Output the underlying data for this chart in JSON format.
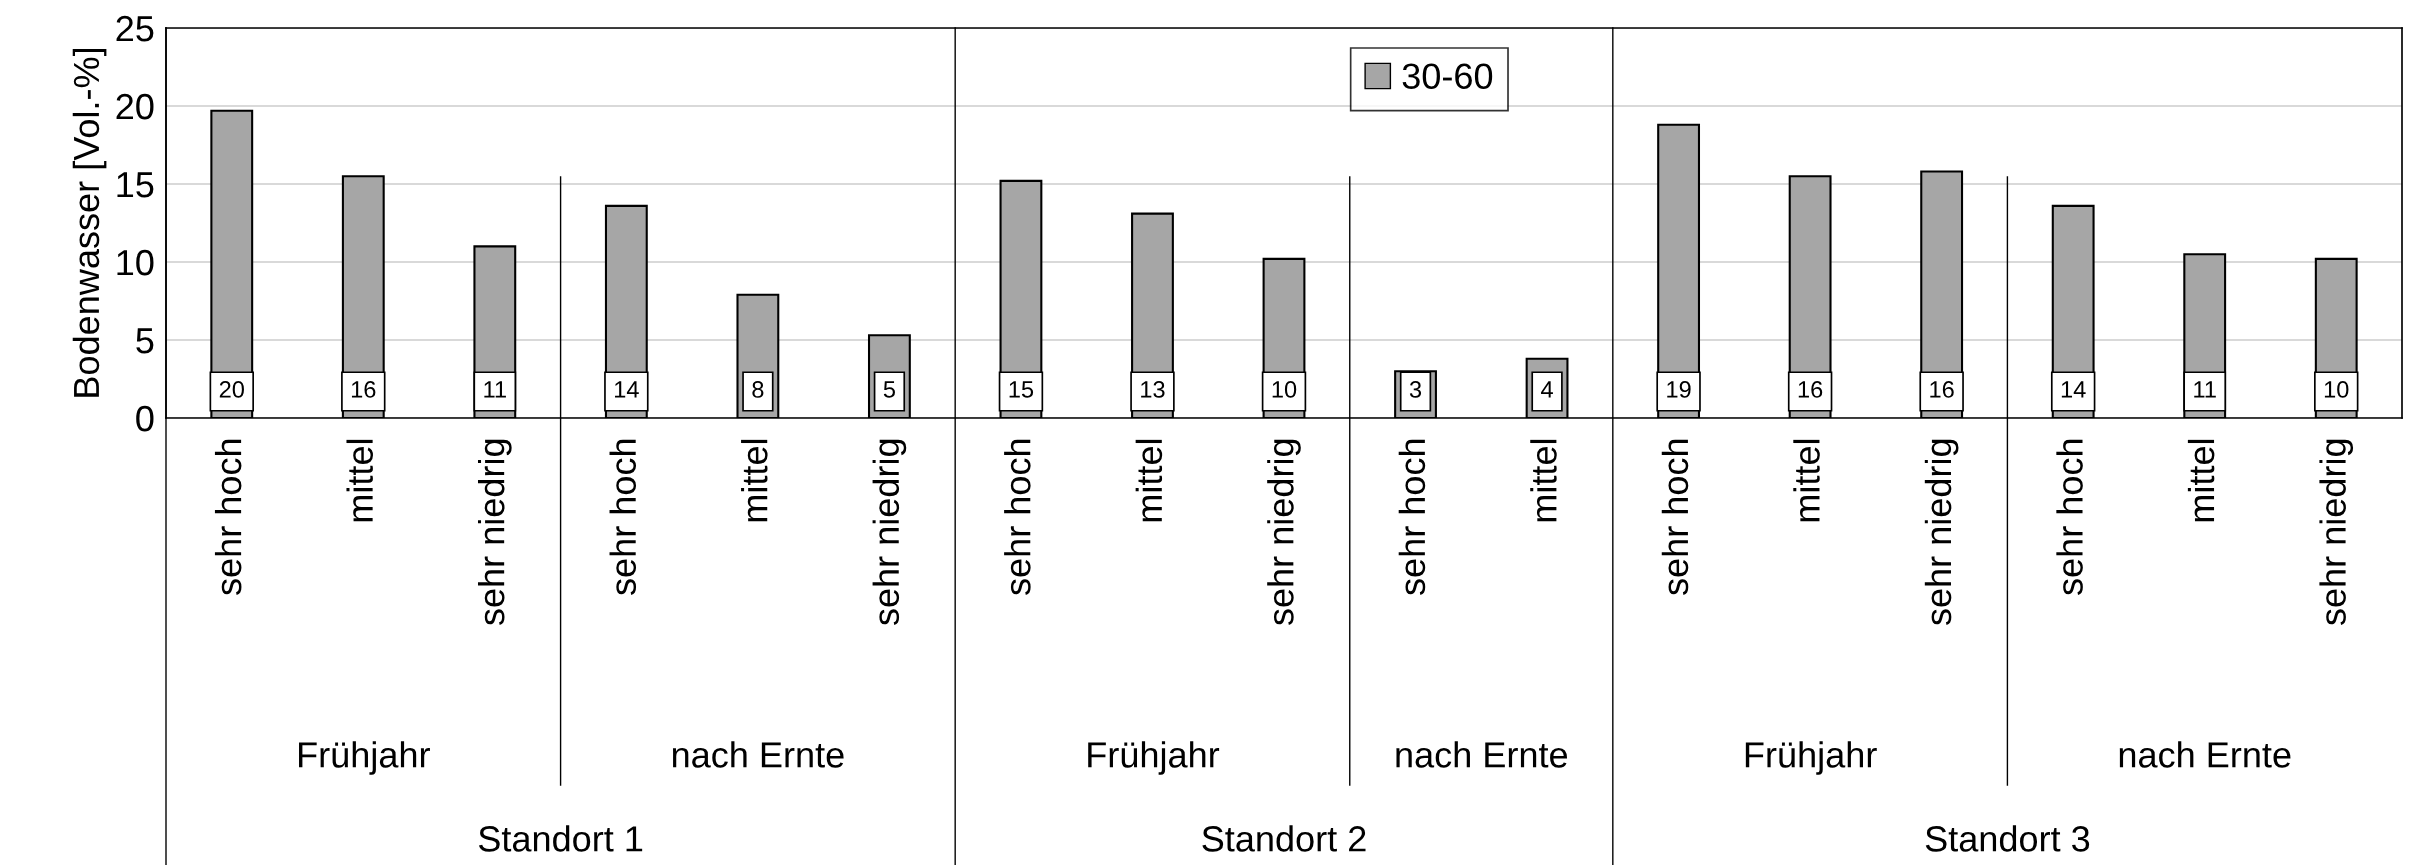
{
  "chart_data": {
    "type": "bar",
    "ylabel": "Bodenwasser [Vol.-%]",
    "categories": [
      "sehr hoch",
      "mittel",
      "sehr niedrig",
      "sehr hoch",
      "mittel",
      "sehr niedrig",
      "sehr hoch",
      "mittel",
      "sehr niedrig",
      "sehr hoch",
      "mittel",
      "sehr hoch",
      "mittel",
      "sehr niedrig",
      "sehr hoch",
      "mittel",
      "sehr niedrig"
    ],
    "series": [
      {
        "name": "30-60",
        "color": "#a6a6a6",
        "values": [
          19.7,
          15.5,
          11.0,
          13.6,
          7.9,
          5.3,
          15.2,
          13.1,
          10.2,
          3.0,
          3.8,
          18.8,
          15.5,
          15.8,
          13.6,
          10.5,
          10.2
        ],
        "value_labels": [
          "20",
          "16",
          "11",
          "14",
          "8",
          "5",
          "15",
          "13",
          "10",
          "3",
          "4",
          "19",
          "16",
          "16",
          "14",
          "11",
          "10"
        ]
      }
    ],
    "annotations": [
      "Frühjahr",
      "nach Ernte",
      "Frühjahr",
      "nach Ernte",
      "Frühjahr",
      "nach Ernte",
      "Standort 1",
      "Standort 2",
      "Standort 3"
    ],
    "ylim": [
      0,
      25
    ],
    "yticks": [
      0,
      5,
      10,
      15,
      20,
      25
    ],
    "grid": "y",
    "legend": "top"
  }
}
